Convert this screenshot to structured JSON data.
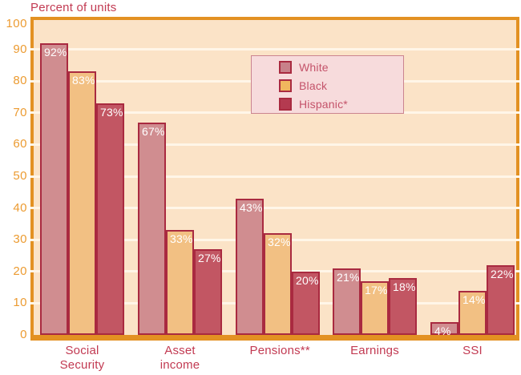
{
  "chart_data": {
    "type": "bar",
    "title": "Percent of units",
    "xlabel": "",
    "ylabel": "Percent of units",
    "categories": [
      "Social Security",
      "Asset income",
      "Pensions**",
      "Earnings",
      "SSI"
    ],
    "series": [
      {
        "name": "White",
        "color": "#D08D90",
        "swatch_color": "#C8818A",
        "values": [
          92,
          67,
          43,
          21,
          4
        ]
      },
      {
        "name": "Black",
        "color": "#F2C083",
        "swatch_color": "#F0B75E",
        "values": [
          83,
          33,
          32,
          17,
          14
        ]
      },
      {
        "name": "Hispanic*",
        "color": "#C25663",
        "swatch_color": "#B43A50",
        "values": [
          73,
          27,
          20,
          18,
          22
        ]
      }
    ],
    "value_suffix": "%",
    "ylim": [
      0,
      100
    ],
    "yticks": [
      0,
      10,
      20,
      30,
      40,
      50,
      60,
      70,
      80,
      90,
      100
    ],
    "grid": true,
    "legend_position": "upper-middle"
  },
  "colors": {
    "axis_line": "#E39122",
    "tick_label": "#EC9B31",
    "plot_bg": "#FBE3C7",
    "gridline": "#FFF6E8",
    "bar_border": "#A92A40",
    "value_label": "#FFFFFF",
    "text_crimson": "#C23A52",
    "legend_bg": "#F7DBDC",
    "legend_border": "#CB8490",
    "legend_text": "#C4536A"
  }
}
